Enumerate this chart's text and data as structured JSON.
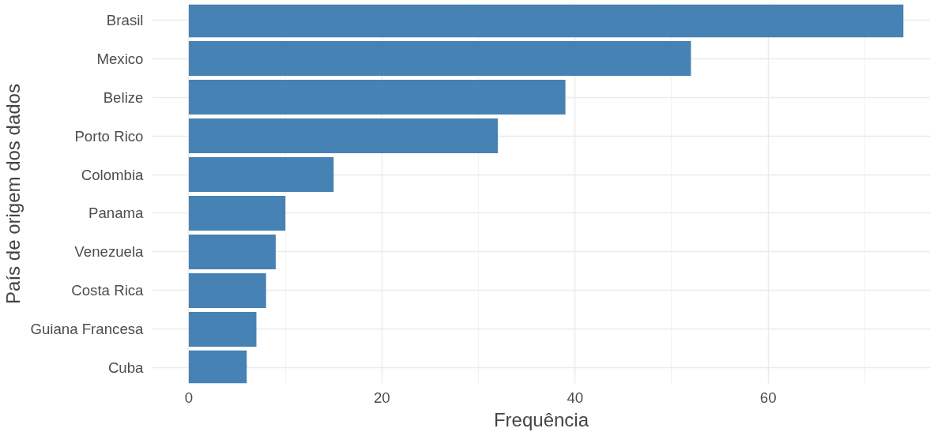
{
  "chart_data": {
    "type": "bar",
    "orientation": "horizontal",
    "xlabel": "Frequência",
    "ylabel": "País de origem dos dados",
    "categories": [
      "Brasil",
      "Mexico",
      "Belize",
      "Porto Rico",
      "Colombia",
      "Panama",
      "Venezuela",
      "Costa Rica",
      "Guiana Francesa",
      "Cuba"
    ],
    "values": [
      74,
      52,
      39,
      32,
      15,
      10,
      9,
      8,
      7,
      6
    ],
    "color": "#4682b4",
    "xlim": [
      -3.8,
      76.8
    ],
    "xticks": [
      0,
      20,
      40,
      60
    ],
    "grid": true
  }
}
